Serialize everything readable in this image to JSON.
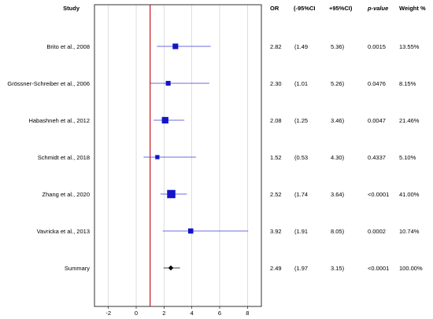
{
  "chart_data": {
    "type": "forest",
    "headers": {
      "study": "Study",
      "or": "OR",
      "lower": "(-95%CI",
      "upper": "+95%CI)",
      "p": "p-value",
      "weight": "Weight %"
    },
    "studies": [
      {
        "name": "Brito et al., 2008",
        "or": 2.82,
        "lower": 1.49,
        "upper": 5.36,
        "or_text": "2.82",
        "lower_text": "(1.49",
        "upper_text": "5.36)",
        "p": "0.0015",
        "weight": "13.55%",
        "weight_value": 13.55
      },
      {
        "name": "Grössner-Schreiber et al., 2006",
        "or": 2.3,
        "lower": 1.01,
        "upper": 5.26,
        "or_text": "2.30",
        "lower_text": "(1.01",
        "upper_text": "5.26)",
        "p": "0.0476",
        "weight": "8.15%",
        "weight_value": 8.15
      },
      {
        "name": "Habashneh et al., 2012",
        "or": 2.08,
        "lower": 1.25,
        "upper": 3.46,
        "or_text": "2.08",
        "lower_text": "(1.25",
        "upper_text": "3.46)",
        "p": "0.0047",
        "weight": "21.46%",
        "weight_value": 21.46
      },
      {
        "name": "Schmidt et al., 2018",
        "or": 1.52,
        "lower": 0.53,
        "upper": 4.3,
        "or_text": "1.52",
        "lower_text": "(0.53",
        "upper_text": "4.30)",
        "p": "0.4337",
        "weight": "5.10%",
        "weight_value": 5.1
      },
      {
        "name": "Zhang et al., 2020",
        "or": 2.52,
        "lower": 1.74,
        "upper": 3.64,
        "or_text": "2.52",
        "lower_text": "(1.74",
        "upper_text": "3.64)",
        "p": "<0.0001",
        "weight": "41.00%",
        "weight_value": 41.0
      },
      {
        "name": "Vavricka et al., 2013",
        "or": 3.92,
        "lower": 1.91,
        "upper": 8.05,
        "or_text": "3.92",
        "lower_text": "(1.91",
        "upper_text": "8.05)",
        "p": "0.0002",
        "weight": "10.74%",
        "weight_value": 10.74
      }
    ],
    "summary": {
      "name": "Summary",
      "or": 2.49,
      "lower": 1.97,
      "upper": 3.15,
      "or_text": "2.49",
      "lower_text": "(1.97",
      "upper_text": "3.15)",
      "p": "<0.0001",
      "weight": "100.00%"
    },
    "x_ticks": [
      -2,
      0,
      2,
      4,
      6,
      8
    ],
    "xlim": [
      -3,
      9
    ],
    "reference_line": 1,
    "grid": true,
    "colors": {
      "study_marker": "#1414c8",
      "ci_line": "#3a3ad8",
      "summary_marker": "#000000",
      "reference_line": "#c8141e",
      "grid": "#c8c8c8"
    }
  }
}
